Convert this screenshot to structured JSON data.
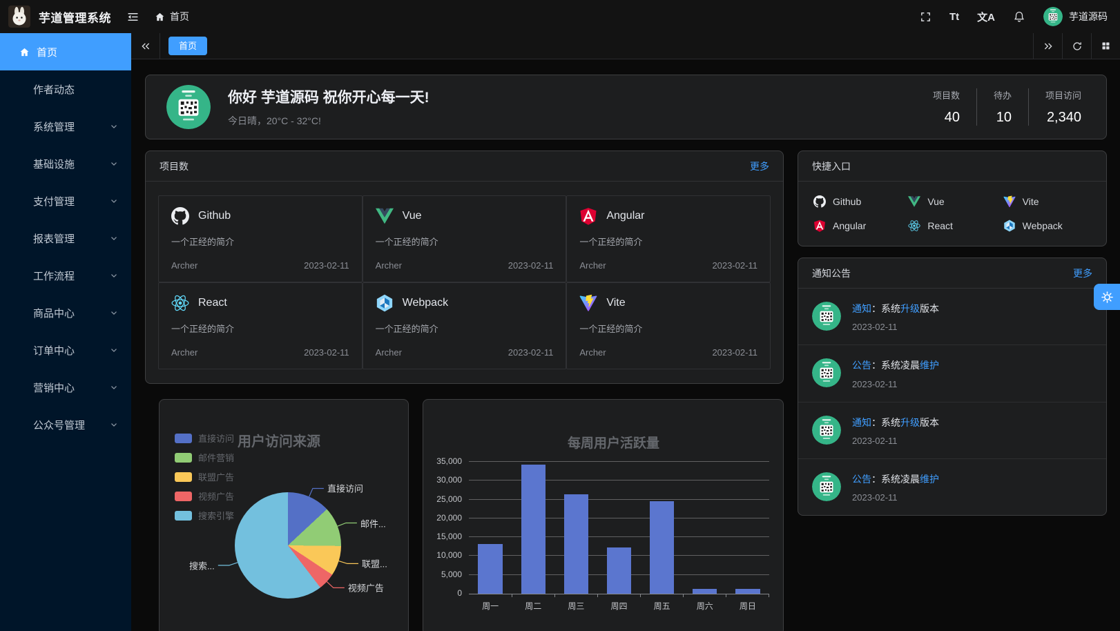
{
  "app": {
    "accent_color": "#409eff",
    "sidebar_color": "#001529",
    "title": "芋道管理系统",
    "breadcrumb_home": "首页",
    "user_name": "芋道源码",
    "font_size_icon_text": "Tt",
    "locale_icon_text": "文A"
  },
  "tabbar": {
    "active_tab": "首页"
  },
  "sidebar": {
    "items": [
      {
        "label": "首页",
        "icon": "home-icon",
        "active": true,
        "arrow": false
      },
      {
        "label": "作者动态",
        "active": false,
        "arrow": false
      },
      {
        "label": "系统管理",
        "active": false,
        "arrow": true
      },
      {
        "label": "基础设施",
        "active": false,
        "arrow": true
      },
      {
        "label": "支付管理",
        "active": false,
        "arrow": true
      },
      {
        "label": "报表管理",
        "active": false,
        "arrow": true
      },
      {
        "label": "工作流程",
        "active": false,
        "arrow": true
      },
      {
        "label": "商品中心",
        "active": false,
        "arrow": true
      },
      {
        "label": "订单中心",
        "active": false,
        "arrow": true
      },
      {
        "label": "营销中心",
        "active": false,
        "arrow": true
      },
      {
        "label": "公众号管理",
        "active": false,
        "arrow": true
      }
    ]
  },
  "welcome": {
    "greeting": "你好 芋道源码 祝你开心每一天!",
    "weather": "今日晴，20°C - 32°C!",
    "stats": [
      {
        "label": "项目数",
        "value": "40"
      },
      {
        "label": "待办",
        "value": "10"
      },
      {
        "label": "项目访问",
        "value": "2,340"
      }
    ]
  },
  "projects": {
    "title": "项目数",
    "more_label": "更多",
    "items": [
      {
        "name": "Github",
        "icon": "github-icon",
        "desc": "一个正经的简介",
        "author": "Archer",
        "date": "2023-02-11"
      },
      {
        "name": "Vue",
        "icon": "vue-icon",
        "desc": "一个正经的简介",
        "author": "Archer",
        "date": "2023-02-11"
      },
      {
        "name": "Angular",
        "icon": "angular-icon",
        "desc": "一个正经的简介",
        "author": "Archer",
        "date": "2023-02-11"
      },
      {
        "name": "React",
        "icon": "react-icon",
        "desc": "一个正经的简介",
        "author": "Archer",
        "date": "2023-02-11"
      },
      {
        "name": "Webpack",
        "icon": "webpack-icon",
        "desc": "一个正经的简介",
        "author": "Archer",
        "date": "2023-02-11"
      },
      {
        "name": "Vite",
        "icon": "vite-icon",
        "desc": "一个正经的简介",
        "author": "Archer",
        "date": "2023-02-11"
      }
    ]
  },
  "shortcuts": {
    "title": "快捷入口",
    "items": [
      {
        "name": "Github",
        "icon": "github-icon"
      },
      {
        "name": "Vue",
        "icon": "vue-icon"
      },
      {
        "name": "Vite",
        "icon": "vite-icon"
      },
      {
        "name": "Angular",
        "icon": "angular-icon"
      },
      {
        "name": "React",
        "icon": "react-icon"
      },
      {
        "name": "Webpack",
        "icon": "webpack-icon"
      }
    ]
  },
  "notices": {
    "title": "通知公告",
    "more_label": "更多",
    "items": [
      {
        "segments": [
          {
            "text": "通知",
            "highlight": true
          },
          {
            "text": "：系统"
          },
          {
            "text": "升级",
            "highlight": true
          },
          {
            "text": "版本"
          }
        ],
        "date": "2023-02-11"
      },
      {
        "segments": [
          {
            "text": "公告",
            "highlight": true
          },
          {
            "text": "：系统凌晨"
          },
          {
            "text": "维护",
            "highlight": true
          }
        ],
        "date": "2023-02-11"
      },
      {
        "segments": [
          {
            "text": "通知",
            "highlight": true
          },
          {
            "text": "：系统"
          },
          {
            "text": "升级",
            "highlight": true
          },
          {
            "text": "版本"
          }
        ],
        "date": "2023-02-11"
      },
      {
        "segments": [
          {
            "text": "公告",
            "highlight": true
          },
          {
            "text": "：系统凌晨"
          },
          {
            "text": "维护",
            "highlight": true
          }
        ],
        "date": "2023-02-11"
      }
    ]
  },
  "chart_data": [
    {
      "type": "pie",
      "title": "用户访问来源",
      "legend_position": "left",
      "labels": [
        "直接访问",
        "邮件营销",
        "联盟广告",
        "视频广告",
        "搜索引擎"
      ],
      "display_labels": [
        "直接访问",
        "邮件...",
        "联盟...",
        "视频广告",
        "搜索..."
      ],
      "values": [
        335,
        310,
        234,
        135,
        1548
      ],
      "colors": [
        "#5470c6",
        "#91cc75",
        "#fac858",
        "#ee6666",
        "#73c0de"
      ]
    },
    {
      "type": "bar",
      "title": "每周用户活跃量",
      "categories": [
        "周一",
        "周二",
        "周三",
        "周四",
        "周五",
        "周六",
        "周日"
      ],
      "values": [
        13253,
        34235,
        26321,
        12340,
        24643,
        1322,
        1324
      ],
      "ylim": [
        0,
        35000
      ],
      "ytick_step": 5000,
      "bar_color": "#5b76cf",
      "grid": true
    }
  ]
}
